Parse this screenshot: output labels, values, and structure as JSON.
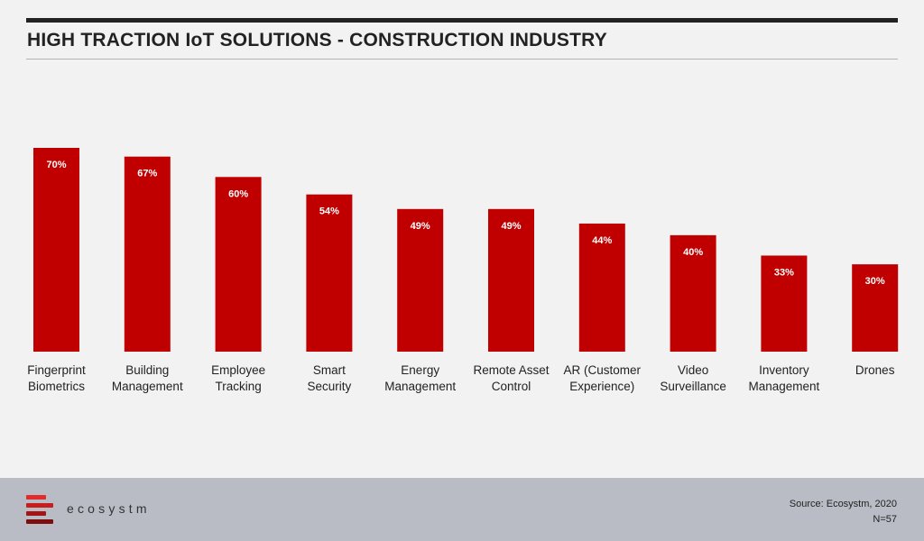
{
  "title": "HIGH TRACTION IoT SOLUTIONS - CONSTRUCTION INDUSTRY",
  "chart_data": {
    "type": "bar",
    "categories": [
      [
        "Fingerprint",
        "Biometrics"
      ],
      [
        "Building",
        "Management"
      ],
      [
        "Employee",
        "Tracking"
      ],
      [
        "Smart",
        "Security"
      ],
      [
        "Energy",
        "Management"
      ],
      [
        "Remote Asset",
        "Control"
      ],
      [
        "AR (Customer",
        "Experience)"
      ],
      [
        "Video",
        "Surveillance"
      ],
      [
        "Inventory",
        "Management"
      ],
      [
        "Drones"
      ]
    ],
    "values": [
      70,
      67,
      60,
      54,
      49,
      49,
      44,
      40,
      33,
      30
    ],
    "value_labels": [
      "70%",
      "67%",
      "60%",
      "54%",
      "49%",
      "49%",
      "44%",
      "40%",
      "33%",
      "30%"
    ],
    "title": "HIGH TRACTION IoT SOLUTIONS - CONSTRUCTION INDUSTRY",
    "xlabel": "",
    "ylabel": "",
    "ylim": [
      0,
      70
    ],
    "grid": false,
    "bar_color": "#c00000",
    "label_color": "#ffffff"
  },
  "footer": {
    "brand": "ecosystm",
    "source": "Source: Ecosystm, 2020",
    "sample": "N=57",
    "logo_colors": [
      "#e32b2b",
      "#c71d1d",
      "#a51414",
      "#7e0e0e"
    ]
  }
}
